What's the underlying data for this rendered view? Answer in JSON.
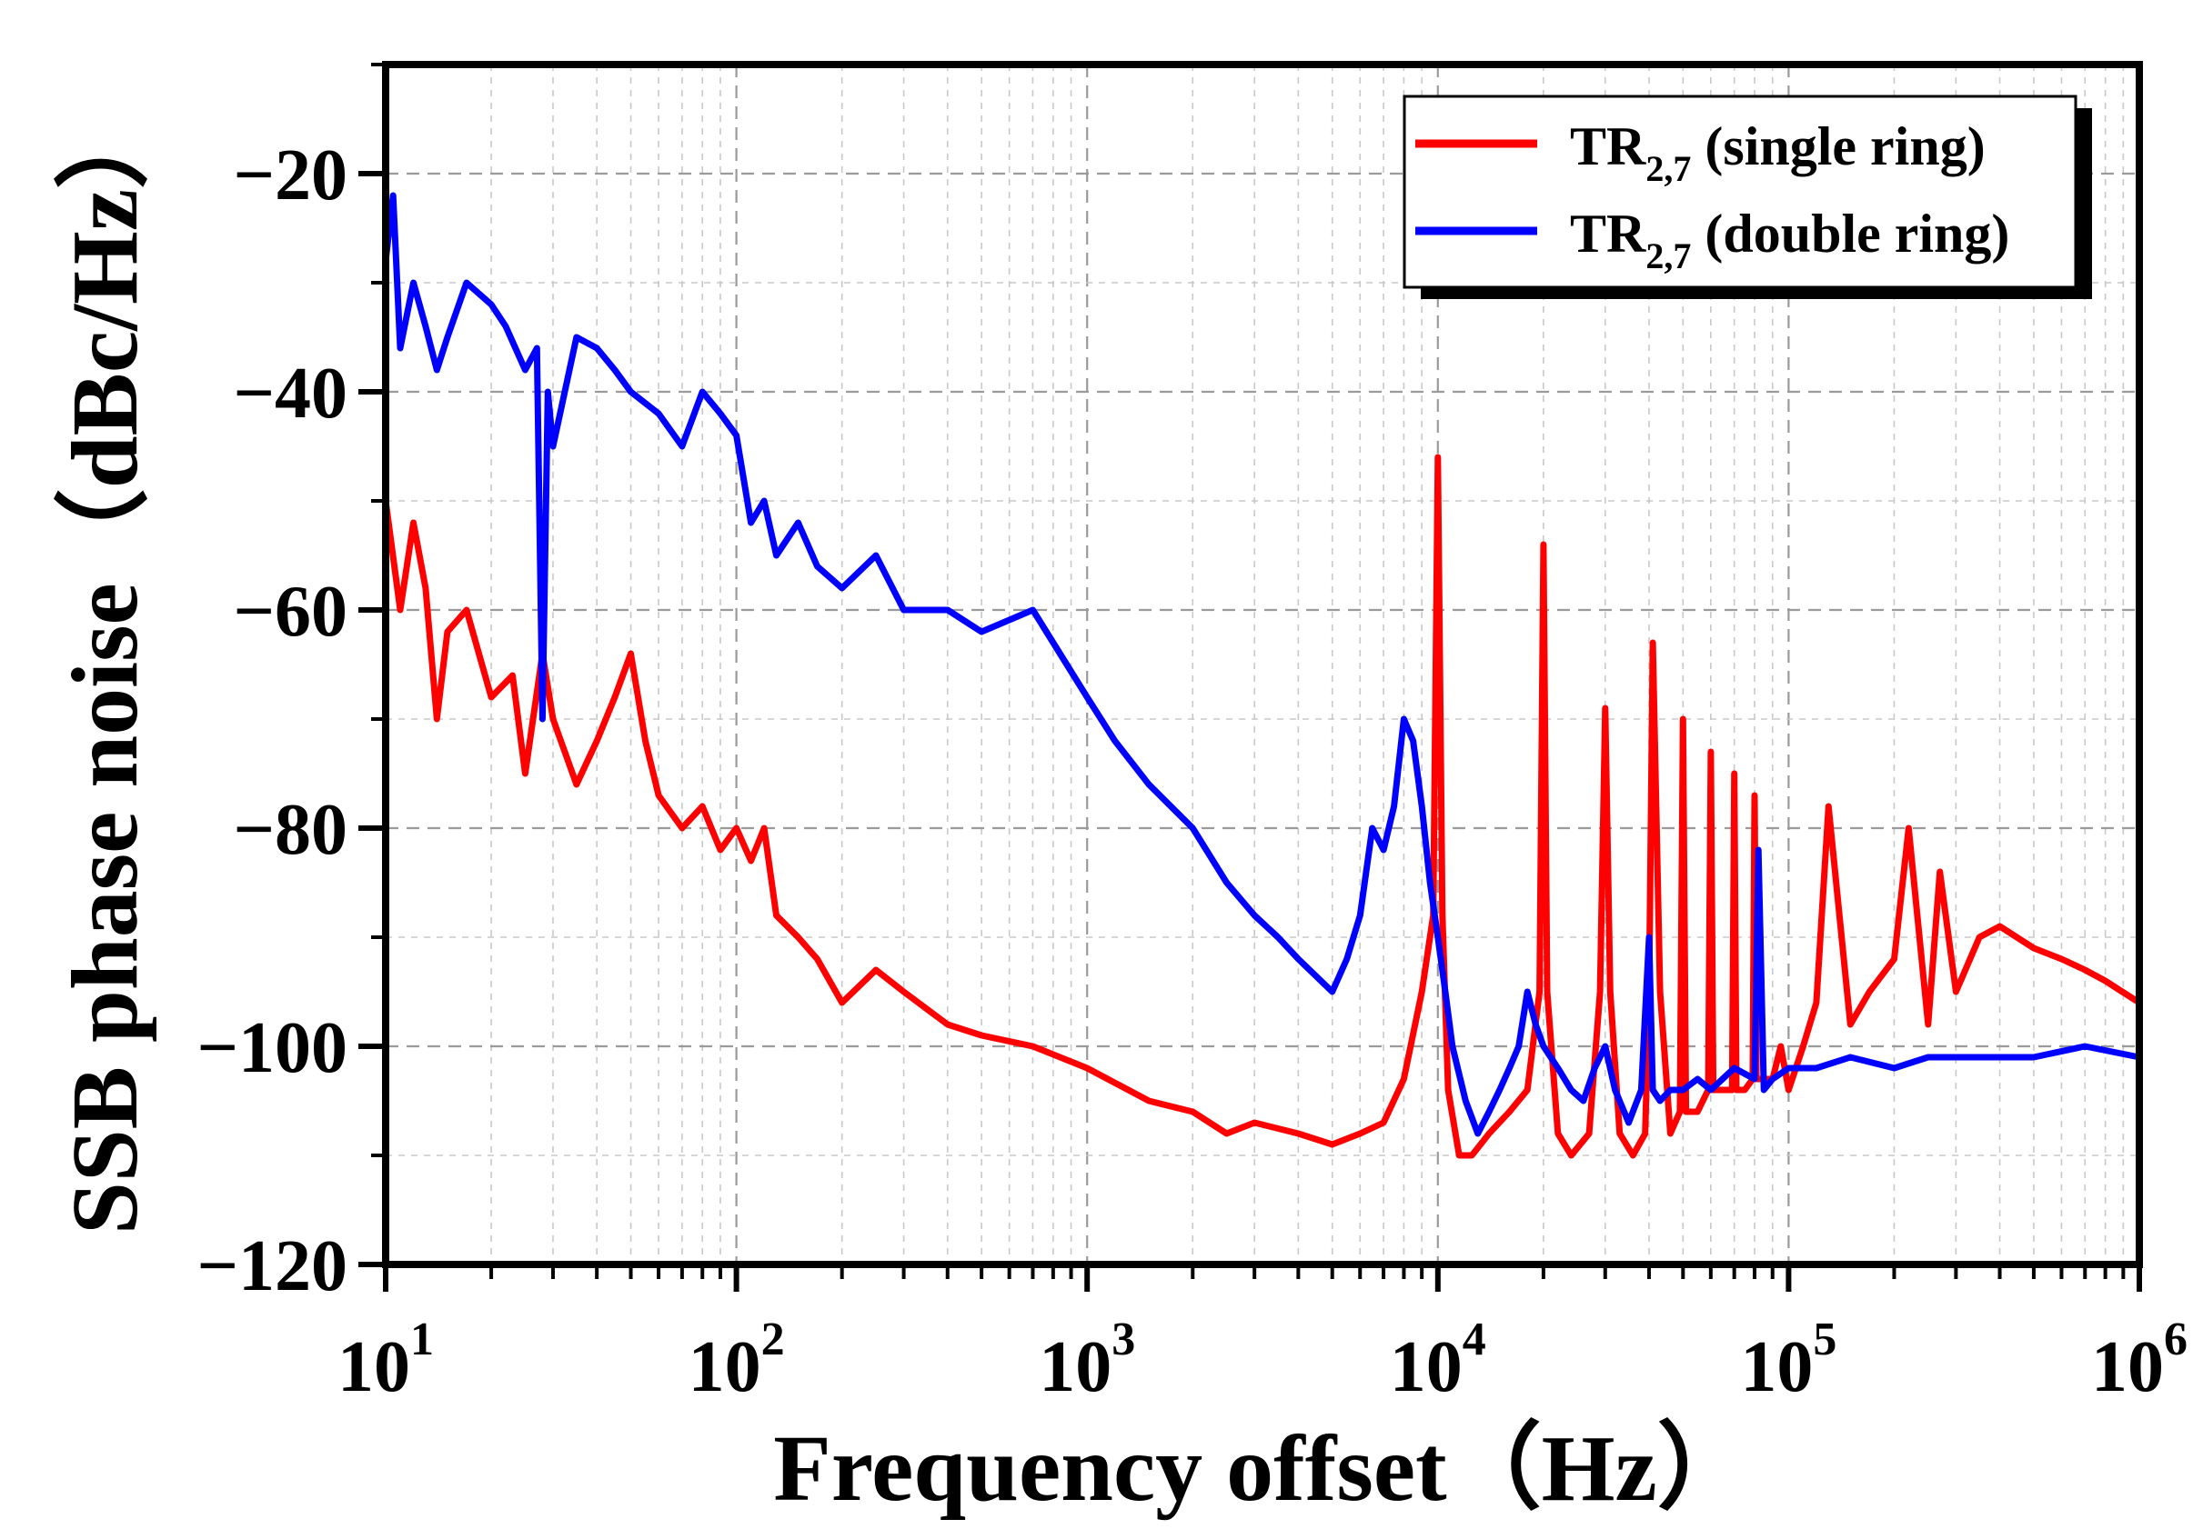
{
  "chart_data": {
    "type": "line",
    "title": "",
    "xlabel": "Frequency offset（Hz）",
    "ylabel": "SSB phase noise（dBc/Hz）",
    "xscale": "log",
    "xlim": [
      10,
      1000000
    ],
    "ylim": [
      -120,
      -10
    ],
    "x_ticks": [
      {
        "base": "10",
        "exp": "1"
      },
      {
        "base": "10",
        "exp": "2"
      },
      {
        "base": "10",
        "exp": "3"
      },
      {
        "base": "10",
        "exp": "4"
      },
      {
        "base": "10",
        "exp": "5"
      },
      {
        "base": "10",
        "exp": "6"
      }
    ],
    "y_ticks": [
      "−120",
      "−100",
      "−80",
      "−60",
      "−40",
      "−20"
    ],
    "grid": true,
    "legend_position": "top-right",
    "series": [
      {
        "name": "TR2,7 (single ring)",
        "legend": {
          "main": "TR",
          "sub": "2,7",
          "rest": " (single ring)"
        },
        "color": "#ff0000",
        "x": [
          10,
          11,
          12,
          13,
          14,
          15,
          17,
          20,
          23,
          25,
          28,
          30,
          35,
          40,
          45,
          50,
          55,
          60,
          70,
          80,
          90,
          100,
          110,
          120,
          130,
          150,
          170,
          200,
          250,
          300,
          400,
          500,
          700,
          1000,
          1500,
          2000,
          2500,
          3000,
          4000,
          5000,
          6000,
          7000,
          8000,
          9000,
          9700,
          10000,
          10300,
          10700,
          11500,
          12500,
          14000,
          16000,
          18000,
          19500,
          20000,
          20500,
          22000,
          24000,
          27000,
          29000,
          30000,
          31000,
          33000,
          36000,
          39000,
          40000,
          41000,
          43000,
          46000,
          49000,
          50000,
          51000,
          55000,
          59000,
          60000,
          61000,
          65000,
          69000,
          70000,
          71000,
          75000,
          79000,
          80000,
          81000,
          85000,
          90000,
          95000,
          100000,
          110000,
          120000,
          130000,
          150000,
          170000,
          200000,
          220000,
          250000,
          270000,
          300000,
          350000,
          400000,
          500000,
          600000,
          700000,
          800000,
          1000000
        ],
        "values": [
          -50,
          -60,
          -52,
          -58,
          -70,
          -62,
          -60,
          -68,
          -66,
          -75,
          -64,
          -70,
          -76,
          -72,
          -68,
          -64,
          -72,
          -77,
          -80,
          -78,
          -82,
          -80,
          -83,
          -80,
          -88,
          -90,
          -92,
          -96,
          -93,
          -95,
          -98,
          -99,
          -100,
          -102,
          -105,
          -106,
          -108,
          -107,
          -108,
          -109,
          -108,
          -107,
          -103,
          -95,
          -88,
          -46,
          -88,
          -104,
          -110,
          -110,
          -108,
          -106,
          -104,
          -95,
          -54,
          -95,
          -108,
          -110,
          -108,
          -95,
          -69,
          -95,
          -108,
          -110,
          -108,
          -95,
          -63,
          -95,
          -108,
          -106,
          -70,
          -106,
          -106,
          -104,
          -73,
          -104,
          -104,
          -104,
          -75,
          -104,
          -104,
          -103,
          -77,
          -103,
          -103,
          -103,
          -100,
          -104,
          -100,
          -96,
          -78,
          -98,
          -95,
          -92,
          -80,
          -98,
          -84,
          -95,
          -90,
          -89,
          -91,
          -92,
          -93,
          -94,
          -96
        ]
      },
      {
        "name": "TR2,7 (double ring)",
        "legend": {
          "main": "TR",
          "sub": "2,7",
          "rest": " (double ring)"
        },
        "color": "#0000ff",
        "x": [
          10,
          10.5,
          11,
          12,
          13,
          14,
          15,
          17,
          20,
          22,
          25,
          27,
          28,
          29,
          30,
          35,
          40,
          45,
          50,
          60,
          70,
          80,
          90,
          100,
          110,
          120,
          130,
          150,
          170,
          200,
          250,
          300,
          400,
          500,
          700,
          1000,
          1200,
          1500,
          2000,
          2500,
          3000,
          3500,
          4000,
          5000,
          5500,
          6000,
          6500,
          7000,
          7500,
          8000,
          8500,
          9000,
          9500,
          10000,
          10500,
          11000,
          12000,
          13000,
          14000,
          15000,
          16000,
          17000,
          18000,
          19000,
          20000,
          22000,
          24000,
          26000,
          28000,
          30000,
          32000,
          35000,
          38000,
          40000,
          41000,
          43000,
          46000,
          50000,
          55000,
          60000,
          70000,
          80000,
          82000,
          85000,
          90000,
          100000,
          110000,
          120000,
          150000,
          200000,
          250000,
          300000,
          400000,
          500000,
          700000,
          1000000
        ],
        "values": [
          -28,
          -22,
          -36,
          -30,
          -34,
          -38,
          -35,
          -30,
          -32,
          -34,
          -38,
          -36,
          -70,
          -40,
          -45,
          -35,
          -36,
          -38,
          -40,
          -42,
          -45,
          -40,
          -42,
          -44,
          -52,
          -50,
          -55,
          -52,
          -56,
          -58,
          -55,
          -60,
          -60,
          -62,
          -60,
          -68,
          -72,
          -76,
          -80,
          -85,
          -88,
          -90,
          -92,
          -95,
          -92,
          -88,
          -80,
          -82,
          -78,
          -70,
          -72,
          -78,
          -85,
          -90,
          -95,
          -100,
          -105,
          -108,
          -106,
          -104,
          -102,
          -100,
          -95,
          -98,
          -100,
          -102,
          -104,
          -105,
          -102,
          -100,
          -104,
          -107,
          -104,
          -90,
          -104,
          -105,
          -104,
          -104,
          -103,
          -104,
          -102,
          -103,
          -82,
          -104,
          -103,
          -102,
          -102,
          -102,
          -101,
          -102,
          -101,
          -101,
          -101,
          -101,
          -100,
          -101
        ]
      }
    ]
  }
}
